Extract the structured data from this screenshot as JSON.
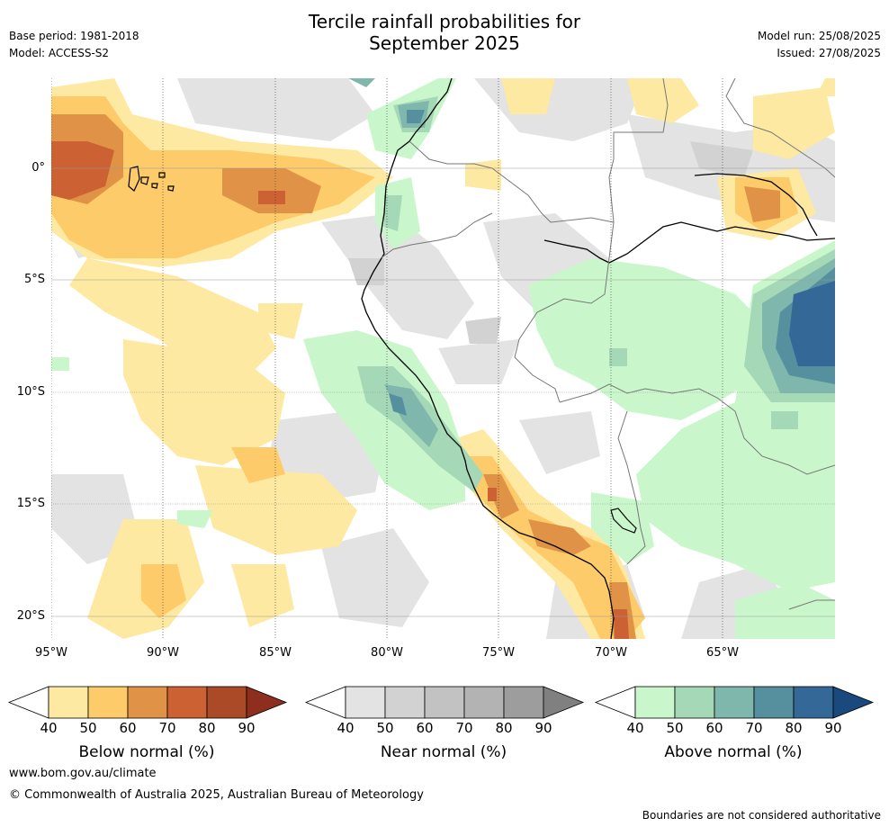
{
  "header": {
    "title_line1": "Tercile rainfall probabilities for",
    "title_line2": "September 2025",
    "base_period": "Base period: 1981-2018",
    "model": "Model: ACCESS-S2",
    "model_run": "Model run: 25/08/2025",
    "issued": "Issued: 27/08/2025"
  },
  "map": {
    "lat_labels": [
      "0°",
      "5°S",
      "10°S",
      "15°S",
      "20°S"
    ],
    "lon_labels": [
      "95°W",
      "90°W",
      "85°W",
      "80°W",
      "75°W",
      "70°W",
      "65°W"
    ]
  },
  "colorbars": [
    {
      "title": "Below normal (%)",
      "ticks": [
        "40",
        "50",
        "60",
        "70",
        "80",
        "90"
      ],
      "colors": [
        "#fde9a1",
        "#fdcb69",
        "#e09346",
        "#cc6233",
        "#ab4a26",
        "#8e2e1f"
      ]
    },
    {
      "title": "Near normal (%)",
      "ticks": [
        "40",
        "50",
        "60",
        "70",
        "80",
        "90"
      ],
      "colors": [
        "#e3e3e3",
        "#d2d2d2",
        "#c2c2c2",
        "#b3b3b3",
        "#9d9d9d",
        "#808080"
      ]
    },
    {
      "title": "Above normal (%)",
      "ticks": [
        "40",
        "50",
        "60",
        "70",
        "80",
        "90"
      ],
      "colors": [
        "#c9f7cb",
        "#a5d8b6",
        "#7fb7ad",
        "#56909e",
        "#336897",
        "#19497d"
      ]
    }
  ],
  "footer": {
    "url": "www.bom.gov.au/climate",
    "copyright": "© Commonwealth of Australia 2025, Australian Bureau of Meteorology",
    "disclaimer": "Boundaries are not considered authoritative"
  }
}
